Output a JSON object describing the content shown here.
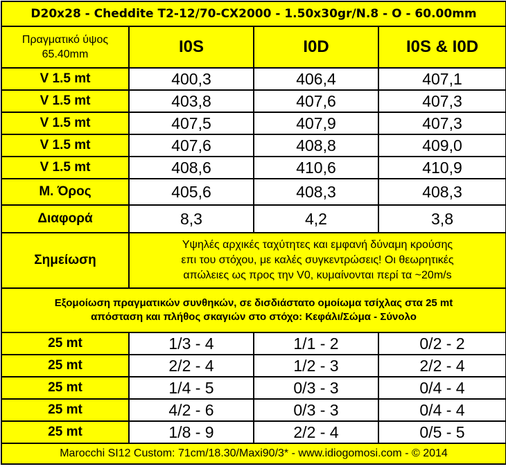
{
  "title": "D20x28 - Cheddite T2-12/70-CX2000 - 1.50x30gr/N.8 - O - 60.00mm",
  "header": {
    "label": [
      "Πραγματικό ύψος",
      "65.40mm"
    ],
    "columns": [
      "I0S",
      "I0D",
      "I0S & I0D"
    ]
  },
  "rows": [
    [
      "V 1.5 mt",
      "400,3",
      "406,4",
      "407,1"
    ],
    [
      "V 1.5 mt",
      "403,8",
      "407,6",
      "407,3"
    ],
    [
      "V 1.5 mt",
      "407,5",
      "407,9",
      "407,3"
    ],
    [
      "V 1.5 mt",
      "407,6",
      "408,8",
      "409,0"
    ],
    [
      "V 1.5 mt",
      "408,6",
      "410,6",
      "410,9"
    ],
    [
      "Μ. Όρος",
      "405,6",
      "408,3",
      "408,3"
    ],
    [
      "Διαφορά",
      "8,3",
      "4,2",
      "3,8"
    ]
  ],
  "note": {
    "label": "Σημείωση",
    "lines": [
      "Υψηλές αρχικές ταχύτητες και εμφανή δύναμη κρούσης",
      "επι του στόχου, με καλές συγκεντρώσεις! Οι θεωρητικές",
      "απώλειες ως προς την V0, κυμαίνονται περί τα ~20m/s"
    ]
  },
  "section": [
    "Εξομοίωση πραγματικών συνθηκών, σε δισδιάστατο ομοίωμα τσίχλας στα 25 mt",
    "απόσταση και πλήθος σκαγιών στο στόχο:  Κεφάλι/Σώμα - Σύνολο"
  ],
  "hits": [
    [
      "25 mt",
      "1/3 - 4",
      "1/1 - 2",
      "0/2 - 2"
    ],
    [
      "25 mt",
      "2/2 - 4",
      "1/2 - 3",
      "2/2 - 4"
    ],
    [
      "25 mt",
      "1/4 - 5",
      "0/3 - 3",
      "0/4 - 4"
    ],
    [
      "25 mt",
      "4/2 - 6",
      "0/3 - 3",
      "0/4 - 4"
    ],
    [
      "25 mt",
      "1/8 - 9",
      "2/2 - 4",
      "0/5 - 5"
    ]
  ],
  "footer": "Marocchi SI12 Custom: 71cm/18.30/Maxi90/3* - www.idiogomosi.com - © 2014"
}
